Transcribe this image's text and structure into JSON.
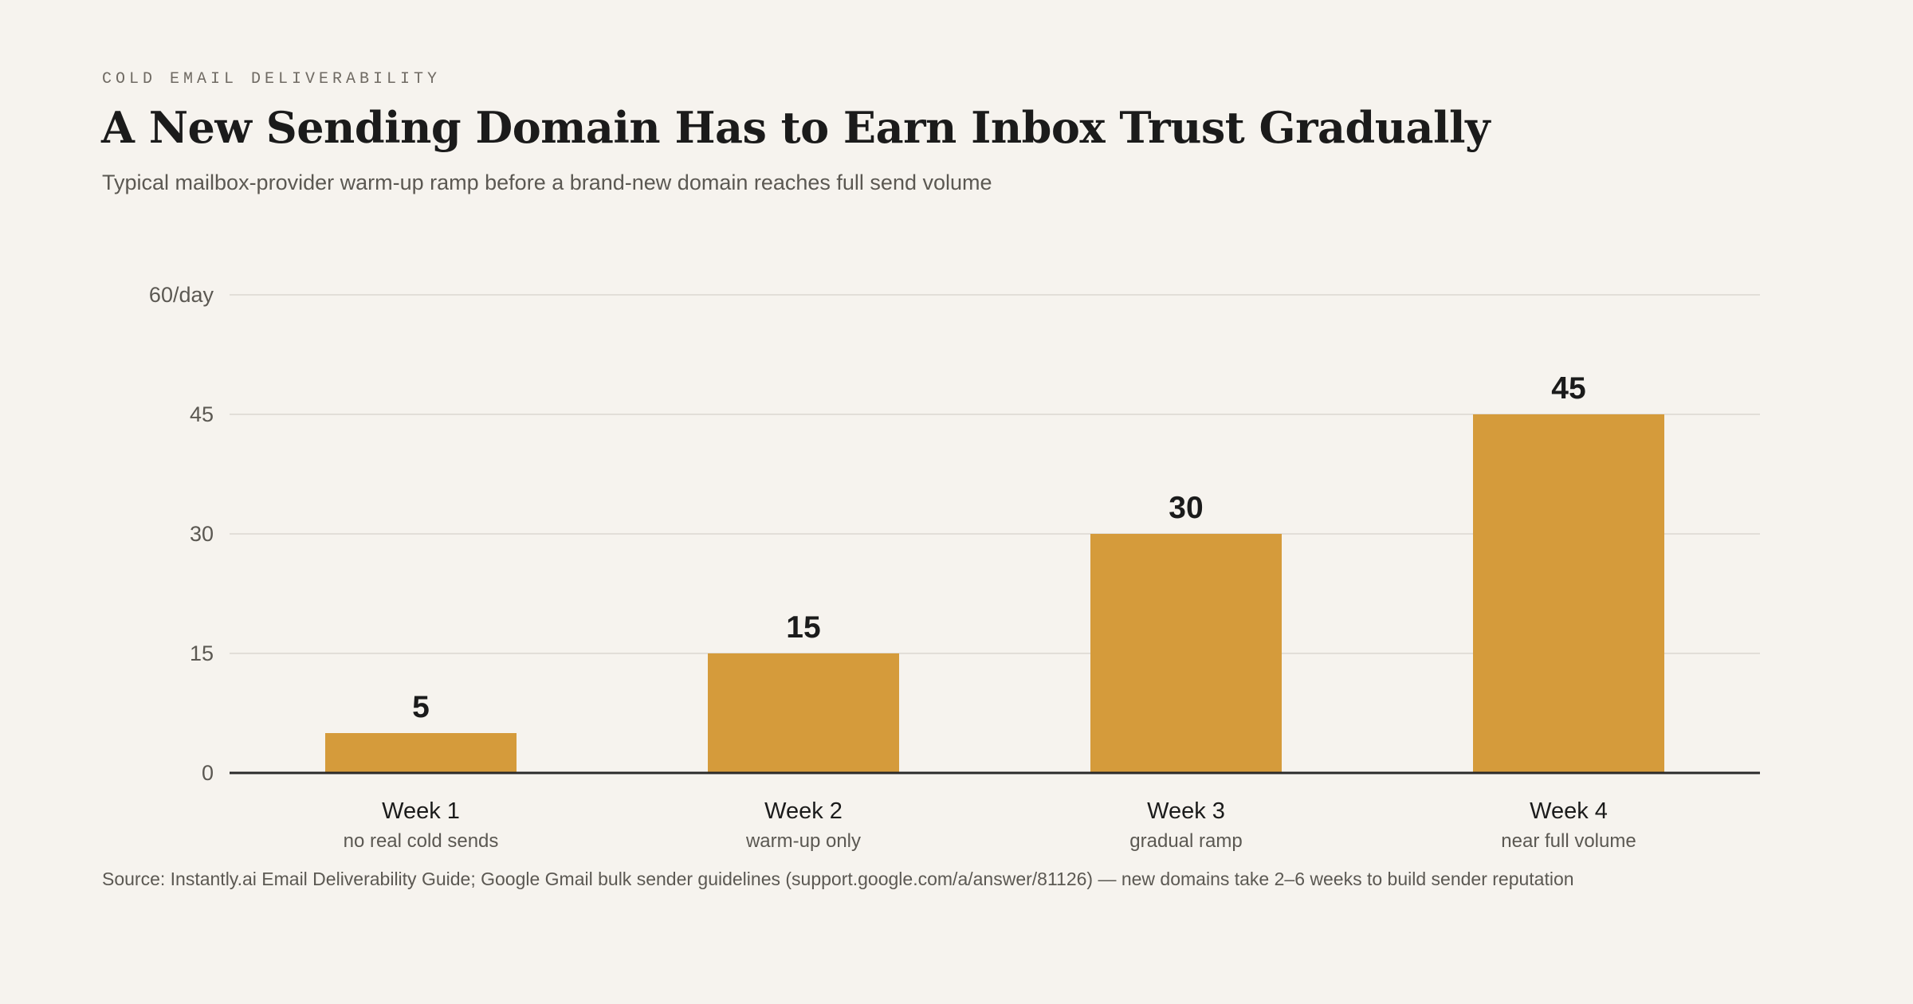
{
  "header": {
    "eyebrow": "COLD EMAIL DELIVERABILITY",
    "title": "A New Sending Domain Has to Earn Inbox Trust Gradually",
    "subtitle": "Typical mailbox-provider warm-up ramp before a brand-new domain reaches full send volume"
  },
  "footer": {
    "source": "Source: Instantly.ai Email Deliverability Guide; Google Gmail bulk sender guidelines (support.google.com/a/answer/81126) — new domains take 2–6 weeks to build sender reputation"
  },
  "chart_data": {
    "type": "bar",
    "categories": [
      "Week 1",
      "Week 2",
      "Week 3",
      "Week 4"
    ],
    "category_sublabels": [
      "no real cold sends",
      "warm-up only",
      "gradual ramp",
      "near full volume"
    ],
    "values": [
      5,
      15,
      30,
      45
    ],
    "data_labels": [
      "5",
      "15",
      "30",
      "45"
    ],
    "title": "",
    "xlabel": "",
    "ylabel": "",
    "ylim": [
      0,
      60
    ],
    "yticks": [
      0,
      15,
      30,
      45,
      60
    ],
    "ytick_labels": [
      "0",
      "15",
      "30",
      "45",
      "60/day"
    ],
    "grid": true,
    "legend": "none",
    "colors": {
      "bar": "#d59b3b",
      "grid": "#dcd8d1",
      "axis": "#2a2a2a",
      "background": "#f6f3ee"
    }
  }
}
